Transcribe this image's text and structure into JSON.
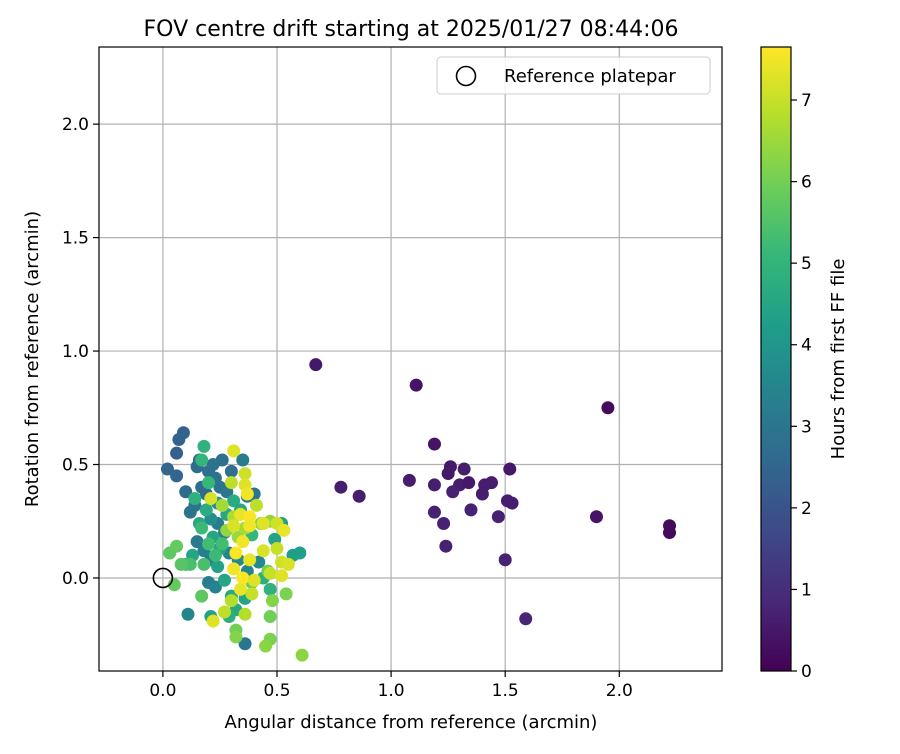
{
  "chart_data": {
    "type": "scatter",
    "title": "FOV centre drift starting at 2025/01/27 08:44:06",
    "xlabel": "Angular distance from reference (arcmin)",
    "ylabel": "Rotation from reference (arcmin)",
    "xlim": [
      -0.28,
      2.45
    ],
    "ylim": [
      -0.41,
      2.34
    ],
    "xticks": [
      0.0,
      0.5,
      1.0,
      1.5,
      2.0
    ],
    "xtick_labels": [
      "0.0",
      "0.5",
      "1.0",
      "1.5",
      "2.0"
    ],
    "yticks": [
      0.0,
      0.5,
      1.0,
      1.5,
      2.0
    ],
    "ytick_labels": [
      "0.0",
      "0.5",
      "1.0",
      "1.5",
      "2.0"
    ],
    "grid": true,
    "legend": {
      "position": "top-right",
      "label": "Reference platepar"
    },
    "reference_point": {
      "x": 0.0,
      "y": 0.0
    },
    "colorbar": {
      "label": "Hours from first FF file",
      "min": 0,
      "max": 7.65,
      "ticks": [
        0,
        1,
        2,
        3,
        4,
        5,
        6,
        7
      ],
      "tick_labels": [
        "0",
        "1",
        "2",
        "3",
        "4",
        "5",
        "6",
        "7"
      ],
      "colormap": "viridis",
      "stops": [
        "#440154",
        "#482878",
        "#3e4989",
        "#31688e",
        "#26828e",
        "#1f9e89",
        "#35b779",
        "#6ece58",
        "#b5de2b",
        "#fde725"
      ]
    },
    "points": [
      {
        "x": 0.67,
        "y": 0.94,
        "c": 0.5
      },
      {
        "x": 1.11,
        "y": 0.85,
        "c": 0.4
      },
      {
        "x": 1.95,
        "y": 0.75,
        "c": 0.2
      },
      {
        "x": 1.19,
        "y": 0.59,
        "c": 0.4
      },
      {
        "x": 1.25,
        "y": 0.46,
        "c": 0.5
      },
      {
        "x": 1.26,
        "y": 0.49,
        "c": 0.5
      },
      {
        "x": 1.32,
        "y": 0.48,
        "c": 0.6
      },
      {
        "x": 1.52,
        "y": 0.48,
        "c": 0.5
      },
      {
        "x": 1.08,
        "y": 0.43,
        "c": 0.6
      },
      {
        "x": 1.19,
        "y": 0.41,
        "c": 0.6
      },
      {
        "x": 1.3,
        "y": 0.41,
        "c": 0.6
      },
      {
        "x": 1.34,
        "y": 0.42,
        "c": 0.5
      },
      {
        "x": 1.41,
        "y": 0.41,
        "c": 0.6
      },
      {
        "x": 1.44,
        "y": 0.42,
        "c": 0.6
      },
      {
        "x": 1.27,
        "y": 0.38,
        "c": 0.7
      },
      {
        "x": 1.4,
        "y": 0.37,
        "c": 0.6
      },
      {
        "x": 0.78,
        "y": 0.4,
        "c": 0.6
      },
      {
        "x": 0.86,
        "y": 0.36,
        "c": 0.6
      },
      {
        "x": 1.51,
        "y": 0.34,
        "c": 0.6
      },
      {
        "x": 1.53,
        "y": 0.33,
        "c": 0.6
      },
      {
        "x": 1.35,
        "y": 0.3,
        "c": 0.7
      },
      {
        "x": 1.19,
        "y": 0.29,
        "c": 0.7
      },
      {
        "x": 1.47,
        "y": 0.27,
        "c": 0.7
      },
      {
        "x": 1.9,
        "y": 0.27,
        "c": 0.4
      },
      {
        "x": 1.23,
        "y": 0.24,
        "c": 0.7
      },
      {
        "x": 2.22,
        "y": 0.23,
        "c": 0.2
      },
      {
        "x": 2.22,
        "y": 0.2,
        "c": 0.2
      },
      {
        "x": 1.24,
        "y": 0.14,
        "c": 0.7
      },
      {
        "x": 1.5,
        "y": 0.08,
        "c": 0.7
      },
      {
        "x": 1.59,
        "y": -0.18,
        "c": 0.8
      },
      {
        "x": 0.09,
        "y": 0.64,
        "c": 2.4
      },
      {
        "x": 0.07,
        "y": 0.61,
        "c": 2.4
      },
      {
        "x": 0.06,
        "y": 0.55,
        "c": 2.3
      },
      {
        "x": 0.02,
        "y": 0.48,
        "c": 2.5
      },
      {
        "x": 0.06,
        "y": 0.45,
        "c": 2.5
      },
      {
        "x": 0.1,
        "y": 0.38,
        "c": 2.6
      },
      {
        "x": 0.15,
        "y": 0.49,
        "c": 2.7
      },
      {
        "x": 0.16,
        "y": 0.52,
        "c": 2.6
      },
      {
        "x": 0.2,
        "y": 0.47,
        "c": 2.8
      },
      {
        "x": 0.22,
        "y": 0.5,
        "c": 2.9
      },
      {
        "x": 0.26,
        "y": 0.52,
        "c": 2.8
      },
      {
        "x": 0.23,
        "y": 0.44,
        "c": 2.9
      },
      {
        "x": 0.12,
        "y": 0.29,
        "c": 2.9
      },
      {
        "x": 0.14,
        "y": 0.32,
        "c": 3.0
      },
      {
        "x": 0.17,
        "y": 0.4,
        "c": 2.7
      },
      {
        "x": 0.19,
        "y": 0.37,
        "c": 2.6
      },
      {
        "x": 0.25,
        "y": 0.4,
        "c": 2.9
      },
      {
        "x": 0.28,
        "y": 0.38,
        "c": 3.0
      },
      {
        "x": 0.3,
        "y": 0.47,
        "c": 2.8
      },
      {
        "x": 0.35,
        "y": 0.52,
        "c": 3.2
      },
      {
        "x": 0.37,
        "y": 0.36,
        "c": 3.1
      },
      {
        "x": 0.4,
        "y": 0.37,
        "c": 2.9
      },
      {
        "x": 0.15,
        "y": 0.16,
        "c": 3.1
      },
      {
        "x": 0.18,
        "y": 0.12,
        "c": 3.3
      },
      {
        "x": 0.21,
        "y": 0.08,
        "c": 3.2
      },
      {
        "x": 0.24,
        "y": 0.24,
        "c": 3.2
      },
      {
        "x": 0.27,
        "y": 0.2,
        "c": 3.4
      },
      {
        "x": 0.29,
        "y": 0.11,
        "c": 3.5
      },
      {
        "x": 0.2,
        "y": -0.02,
        "c": 3.3
      },
      {
        "x": 0.23,
        "y": -0.04,
        "c": 3.4
      },
      {
        "x": 0.36,
        "y": -0.29,
        "c": 3.0
      },
      {
        "x": 0.11,
        "y": -0.16,
        "c": 3.5
      },
      {
        "x": 0.33,
        "y": 0.08,
        "c": 3.6
      },
      {
        "x": 0.37,
        "y": 0.03,
        "c": 3.5
      },
      {
        "x": 0.42,
        "y": 0.07,
        "c": 3.6
      },
      {
        "x": 0.24,
        "y": 0.33,
        "c": 3.7
      },
      {
        "x": 0.21,
        "y": 0.26,
        "c": 3.8
      },
      {
        "x": 0.18,
        "y": 0.58,
        "c": 4.9
      },
      {
        "x": 0.17,
        "y": 0.52,
        "c": 5.0
      },
      {
        "x": 0.2,
        "y": 0.42,
        "c": 5.1
      },
      {
        "x": 0.14,
        "y": 0.35,
        "c": 4.9
      },
      {
        "x": 0.19,
        "y": 0.3,
        "c": 4.7
      },
      {
        "x": 0.16,
        "y": 0.24,
        "c": 4.6
      },
      {
        "x": 0.22,
        "y": 0.18,
        "c": 4.5
      },
      {
        "x": 0.25,
        "y": 0.13,
        "c": 4.4
      },
      {
        "x": 0.13,
        "y": 0.1,
        "c": 4.5
      },
      {
        "x": 0.28,
        "y": 0.28,
        "c": 4.6
      },
      {
        "x": 0.31,
        "y": 0.34,
        "c": 4.7
      },
      {
        "x": 0.34,
        "y": 0.3,
        "c": 4.6
      },
      {
        "x": 0.52,
        "y": 0.24,
        "c": 4.3
      },
      {
        "x": 0.49,
        "y": 0.17,
        "c": 4.4
      },
      {
        "x": 0.6,
        "y": 0.11,
        "c": 4.3
      },
      {
        "x": 0.57,
        "y": 0.1,
        "c": 4.3
      },
      {
        "x": 0.24,
        "y": 0.05,
        "c": 4.4
      },
      {
        "x": 0.27,
        "y": -0.01,
        "c": 4.5
      },
      {
        "x": 0.3,
        "y": -0.08,
        "c": 4.6
      },
      {
        "x": 0.32,
        "y": -0.14,
        "c": 4.6
      },
      {
        "x": 0.36,
        "y": -0.09,
        "c": 4.5
      },
      {
        "x": 0.21,
        "y": -0.17,
        "c": 4.4
      },
      {
        "x": 0.29,
        "y": -0.17,
        "c": 4.8
      },
      {
        "x": 0.44,
        "y": 0.0,
        "c": 4.8
      },
      {
        "x": 0.47,
        "y": -0.05,
        "c": 4.9
      },
      {
        "x": 0.17,
        "y": 0.22,
        "c": 5.2
      },
      {
        "x": 0.2,
        "y": 0.15,
        "c": 5.3
      },
      {
        "x": 0.23,
        "y": 0.1,
        "c": 5.2
      },
      {
        "x": 0.26,
        "y": 0.15,
        "c": 5.3
      },
      {
        "x": 0.18,
        "y": 0.06,
        "c": 5.4
      },
      {
        "x": 0.1,
        "y": 0.06,
        "c": 5.3
      },
      {
        "x": 0.12,
        "y": 0.06,
        "c": 5.4
      },
      {
        "x": 0.39,
        "y": 0.19,
        "c": 5.1
      },
      {
        "x": 0.05,
        "y": -0.03,
        "c": 5.8
      },
      {
        "x": 0.03,
        "y": 0.11,
        "c": 5.7
      },
      {
        "x": 0.06,
        "y": 0.14,
        "c": 5.8
      },
      {
        "x": 0.17,
        "y": -0.08,
        "c": 5.7
      },
      {
        "x": 0.08,
        "y": 0.06,
        "c": 5.6
      },
      {
        "x": 0.32,
        "y": -0.23,
        "c": 6.0
      },
      {
        "x": 0.32,
        "y": -0.26,
        "c": 6.2
      },
      {
        "x": 0.47,
        "y": -0.27,
        "c": 6.1
      },
      {
        "x": 0.45,
        "y": -0.3,
        "c": 6.3
      },
      {
        "x": 0.61,
        "y": -0.34,
        "c": 6.3
      },
      {
        "x": 0.47,
        "y": -0.17,
        "c": 6.0
      },
      {
        "x": 0.48,
        "y": -0.1,
        "c": 6.2
      },
      {
        "x": 0.54,
        "y": -0.07,
        "c": 6.1
      },
      {
        "x": 0.39,
        "y": -0.02,
        "c": 5.9
      },
      {
        "x": 0.46,
        "y": 0.03,
        "c": 6.0
      },
      {
        "x": 0.43,
        "y": 0.24,
        "c": 6.3
      },
      {
        "x": 0.47,
        "y": 0.25,
        "c": 6.4
      },
      {
        "x": 0.28,
        "y": 0.21,
        "c": 6.4
      },
      {
        "x": 0.33,
        "y": 0.18,
        "c": 6.5
      },
      {
        "x": 0.36,
        "y": 0.22,
        "c": 6.6
      },
      {
        "x": 0.31,
        "y": 0.27,
        "c": 6.7
      },
      {
        "x": 0.26,
        "y": 0.32,
        "c": 6.6
      },
      {
        "x": 0.31,
        "y": 0.56,
        "c": 7.3
      },
      {
        "x": 0.36,
        "y": 0.46,
        "c": 7.1
      },
      {
        "x": 0.36,
        "y": 0.41,
        "c": 7.3
      },
      {
        "x": 0.37,
        "y": 0.37,
        "c": 7.5
      },
      {
        "x": 0.21,
        "y": 0.35,
        "c": 7.2
      },
      {
        "x": 0.3,
        "y": 0.42,
        "c": 6.9
      },
      {
        "x": 0.41,
        "y": 0.32,
        "c": 6.9
      },
      {
        "x": 0.34,
        "y": 0.28,
        "c": 7.4
      },
      {
        "x": 0.38,
        "y": 0.27,
        "c": 7.6
      },
      {
        "x": 0.38,
        "y": 0.23,
        "c": 7.5
      },
      {
        "x": 0.31,
        "y": 0.23,
        "c": 7.2
      },
      {
        "x": 0.44,
        "y": 0.24,
        "c": 7.3
      },
      {
        "x": 0.5,
        "y": 0.24,
        "c": 7.1
      },
      {
        "x": 0.53,
        "y": 0.21,
        "c": 7.4
      },
      {
        "x": 0.44,
        "y": 0.12,
        "c": 7.2
      },
      {
        "x": 0.5,
        "y": 0.13,
        "c": 7.0
      },
      {
        "x": 0.32,
        "y": 0.11,
        "c": 7.6
      },
      {
        "x": 0.35,
        "y": 0.16,
        "c": 7.5
      },
      {
        "x": 0.38,
        "y": 0.08,
        "c": 7.4
      },
      {
        "x": 0.31,
        "y": 0.04,
        "c": 7.5
      },
      {
        "x": 0.35,
        "y": 0.0,
        "c": 7.6
      },
      {
        "x": 0.4,
        "y": -0.01,
        "c": 7.3
      },
      {
        "x": 0.34,
        "y": -0.05,
        "c": 7.4
      },
      {
        "x": 0.39,
        "y": -0.07,
        "c": 7.0
      },
      {
        "x": 0.3,
        "y": -0.1,
        "c": 6.8
      },
      {
        "x": 0.27,
        "y": -0.15,
        "c": 6.9
      },
      {
        "x": 0.22,
        "y": -0.19,
        "c": 7.3
      },
      {
        "x": 0.36,
        "y": -0.16,
        "c": 6.8
      },
      {
        "x": 0.52,
        "y": 0.07,
        "c": 7.1
      },
      {
        "x": 0.55,
        "y": 0.06,
        "c": 7.2
      },
      {
        "x": 0.47,
        "y": 0.02,
        "c": 7.0
      },
      {
        "x": 0.52,
        "y": 0.01,
        "c": 7.3
      }
    ]
  }
}
